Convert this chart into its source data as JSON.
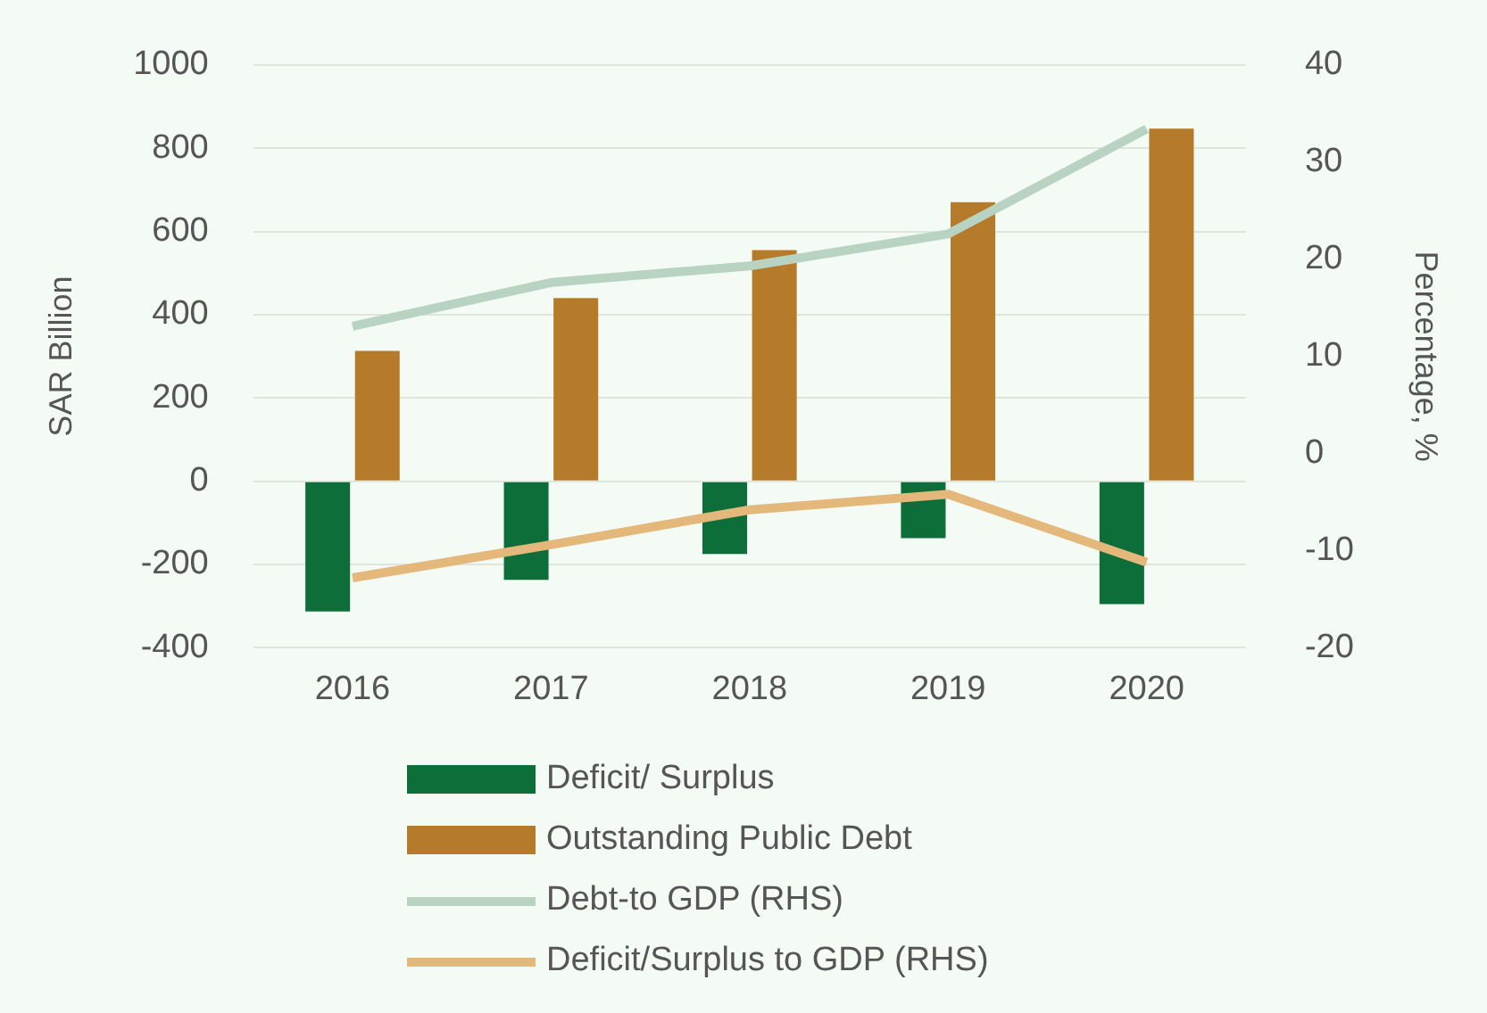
{
  "chart_data": {
    "type": "bar",
    "categories": [
      "2016",
      "2017",
      "2018",
      "2019",
      "2020"
    ],
    "ylabel": "SAR Billion",
    "y2label": "Percentage, %",
    "ylim": [
      -400,
      1000
    ],
    "yticks": [
      -400,
      -200,
      0,
      200,
      400,
      600,
      800,
      1000
    ],
    "y2lim": [
      -20,
      40
    ],
    "y2ticks": [
      -20,
      -10,
      0,
      10,
      20,
      30,
      40
    ],
    "grid": "y",
    "legend": "bottom",
    "series": [
      {
        "name": "Deficit/ Surplus",
        "color": "#0e6e3a",
        "values": [
          -313,
          -237,
          -175,
          -137,
          -295
        ]
      },
      {
        "name": "Outstanding Public Debt",
        "color": "#b57b2a",
        "values": [
          313,
          440,
          555,
          670,
          847
        ]
      },
      {
        "name": "Debt-to GDP (RHS)",
        "type": "line",
        "axis": "y2",
        "color": "#b9d3c3",
        "values": [
          13.1,
          17.6,
          19.3,
          22.6,
          33.4
        ]
      },
      {
        "name": "Deficit/Surplus to GDP (RHS)",
        "type": "line",
        "axis": "y2",
        "color": "#e3b87a",
        "values": [
          -12.8,
          -9.4,
          -5.8,
          -4.2,
          -11.2
        ]
      }
    ]
  }
}
